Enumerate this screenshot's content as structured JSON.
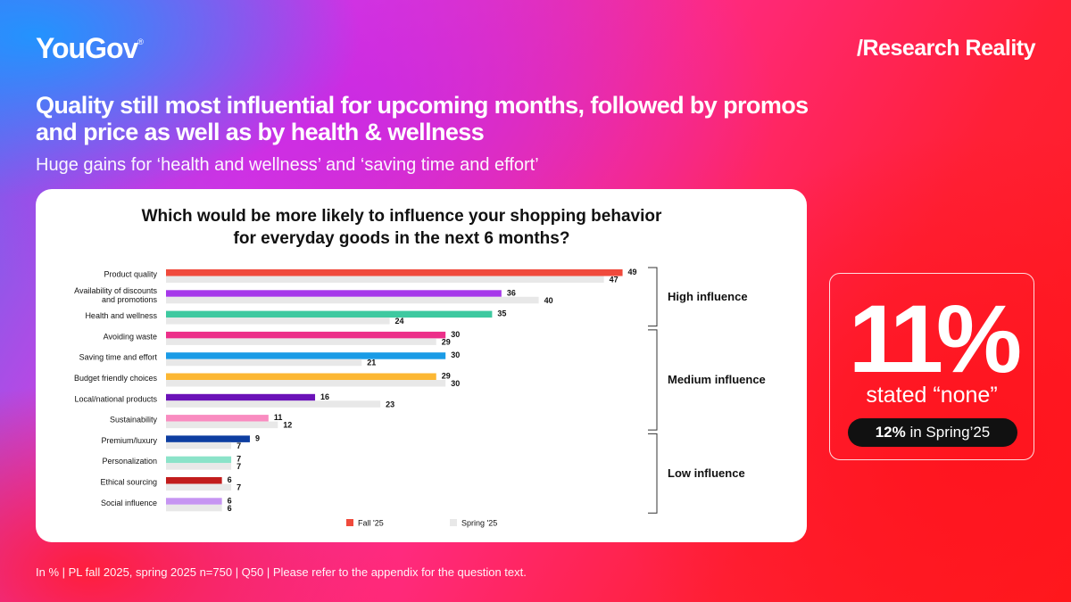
{
  "header": {
    "logo": "YouGov",
    "logo_mark": "®",
    "brand_right": "/Research Reality"
  },
  "headline": "Quality still most influential for upcoming months, followed by promos and price as well as by health & wellness",
  "subheadline": "Huge gains for ‘health and wellness’ and ‘saving time and effort’",
  "chart_data": {
    "type": "bar",
    "orientation": "horizontal",
    "title": "Which would be more likely to influence your shopping behavior for everyday goods in the next 6 months?",
    "categories": [
      "Product quality",
      "Availability of discounts and promotions",
      "Health and wellness",
      "Avoiding waste",
      "Saving time and effort",
      "Budget friendly choices",
      "Local/national products",
      "Sustainability",
      "Premium/luxury",
      "Personalization",
      "Ethical sourcing",
      "Social influence"
    ],
    "series": [
      {
        "name": "Fall '25",
        "values": [
          49,
          36,
          35,
          30,
          30,
          29,
          16,
          11,
          9,
          7,
          6,
          6
        ],
        "colors": [
          "#f04a3c",
          "#a638ea",
          "#3ec9a0",
          "#ec2f89",
          "#1a9be6",
          "#fcb733",
          "#6b12b8",
          "#f98cc0",
          "#0d3ea1",
          "#8be3c9",
          "#c21c1c",
          "#c695f2"
        ]
      },
      {
        "name": "Spring '25",
        "values": [
          47,
          40,
          24,
          29,
          21,
          30,
          23,
          12,
          7,
          7,
          7,
          6
        ],
        "color": "#e8e8e8"
      }
    ],
    "groups": [
      {
        "label": "High influence",
        "from": 0,
        "to": 2
      },
      {
        "label": "Medium influence",
        "from": 3,
        "to": 7
      },
      {
        "label": "Low influence",
        "from": 8,
        "to": 11
      }
    ],
    "xlim": [
      0,
      50
    ],
    "legend_position": "bottom",
    "grid": false,
    "unit": "%"
  },
  "stat": {
    "value": "11%",
    "label": "stated “none”",
    "compare_value": "12%",
    "compare_text": " in Spring’25"
  },
  "footnote": "In % | PL fall 2025, spring 2025 n=750 | Q50 | Please refer to the appendix for the question text."
}
